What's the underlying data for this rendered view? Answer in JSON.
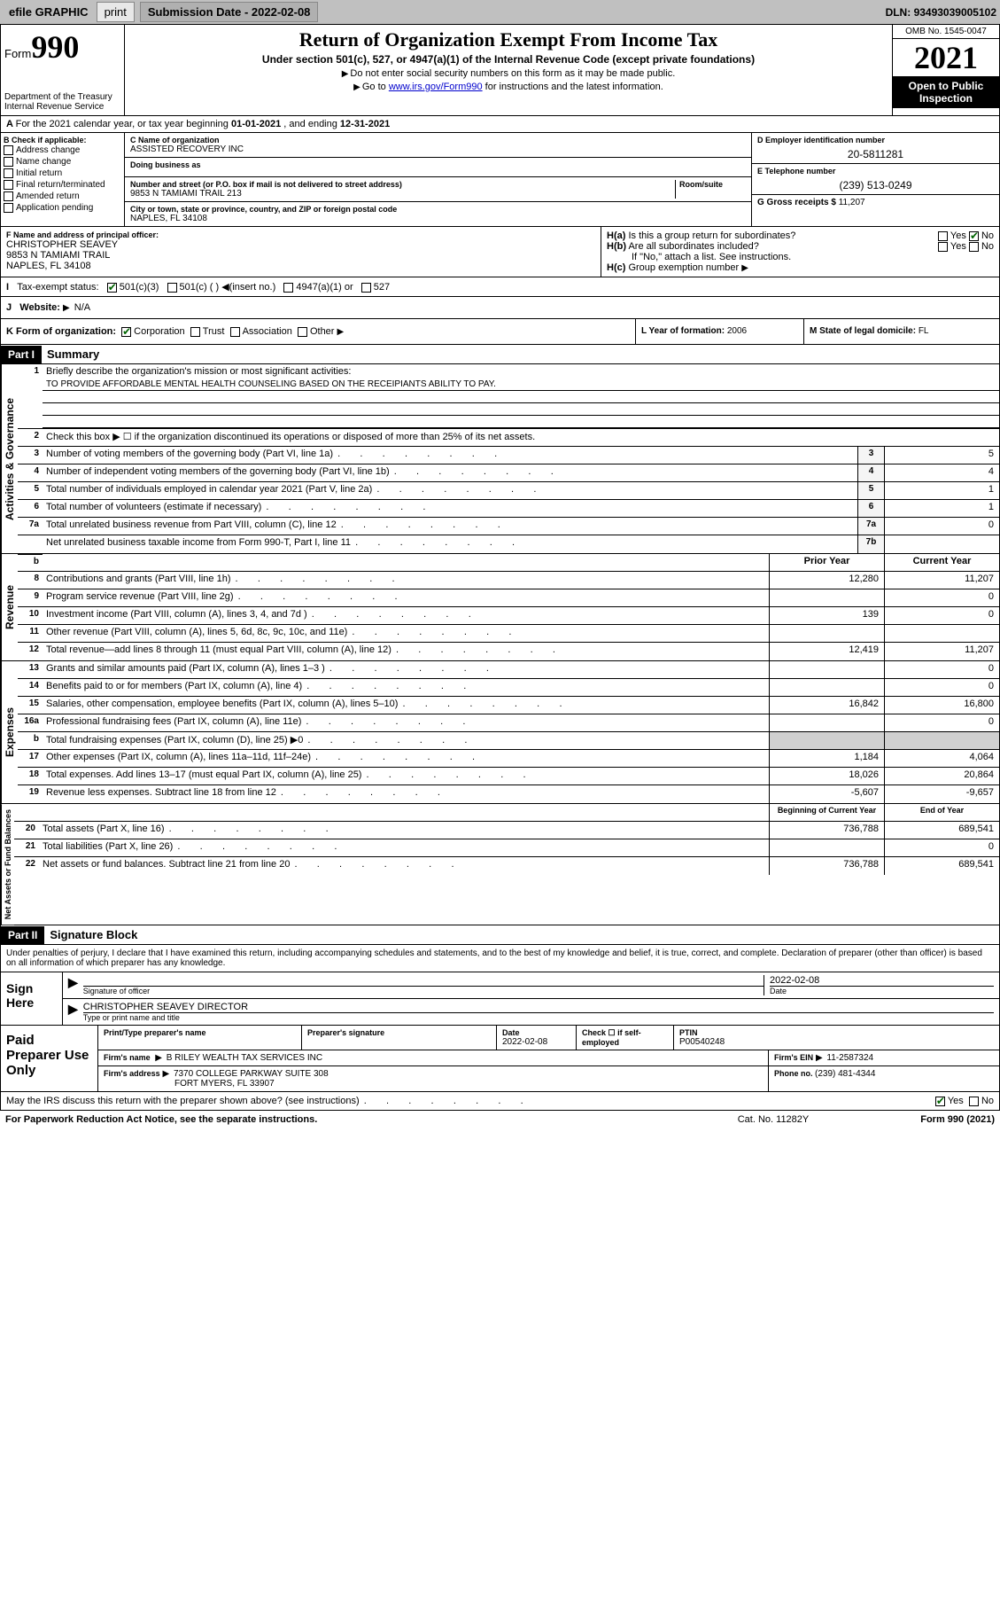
{
  "topbar": {
    "efile": "efile GRAPHIC",
    "print": "print",
    "sub_lbl": "Submission Date - ",
    "sub_date": "2022-02-08",
    "dln_lbl": "DLN: ",
    "dln": "93493039005102"
  },
  "hdr": {
    "form_pre": "Form",
    "form_no": "990",
    "dept": "Department of the Treasury",
    "irs": "Internal Revenue Service",
    "title": "Return of Organization Exempt From Income Tax",
    "sub": "Under section 501(c), 527, or 4947(a)(1) of the Internal Revenue Code (except private foundations)",
    "note1": "Do not enter social security numbers on this form as it may be made public.",
    "note2_pre": "Go to ",
    "note2_link": "www.irs.gov/Form990",
    "note2_post": " for instructions and the latest information.",
    "omb": "OMB No. 1545-0047",
    "year": "2021",
    "inspect": "Open to Public Inspection"
  },
  "a": {
    "text": "For the 2021 calendar year, or tax year beginning ",
    "begin": "01-01-2021",
    "mid": " , and ending ",
    "end": "12-31-2021"
  },
  "b": {
    "hdr": "B Check if applicable:",
    "opts": [
      "Address change",
      "Name change",
      "Initial return",
      "Final return/terminated",
      "Amended return",
      "Application pending"
    ]
  },
  "c": {
    "name_lbl": "C Name of organization",
    "name": "ASSISTED RECOVERY INC",
    "dba_lbl": "Doing business as",
    "dba": "",
    "street_lbl": "Number and street (or P.O. box if mail is not delivered to street address)",
    "room_lbl": "Room/suite",
    "street": "9853 N TAMIAMI TRAIL 213",
    "city_lbl": "City or town, state or province, country, and ZIP or foreign postal code",
    "city": "NAPLES, FL  34108"
  },
  "d": {
    "lbl": "D Employer identification number",
    "val": "20-5811281"
  },
  "e": {
    "lbl": "E Telephone number",
    "val": "(239) 513-0249"
  },
  "g": {
    "lbl": "G Gross receipts $ ",
    "val": "11,207"
  },
  "f": {
    "lbl": "F Name and address of principal officer:",
    "name": "CHRISTOPHER SEAVEY",
    "addr1": "9853 N TAMIAMI TRAIL",
    "addr2": "NAPLES, FL  34108"
  },
  "h": {
    "a_lbl": "Is this a group return for subordinates?",
    "a_yes": "Yes",
    "a_no": "No",
    "b_lbl": "Are all subordinates included?",
    "b_yes": "Yes",
    "b_no": "No",
    "b_note": "If \"No,\" attach a list. See instructions.",
    "c_lbl": "Group exemption number"
  },
  "i": {
    "lbl": "Tax-exempt status:",
    "o1": "501(c)(3)",
    "o2": "501(c) (  )",
    "o2b": "(insert no.)",
    "o3": "4947(a)(1) or",
    "o4": "527"
  },
  "j": {
    "lbl": "Website:",
    "val": "N/A"
  },
  "k": {
    "lbl": "K Form of organization:",
    "o1": "Corporation",
    "o2": "Trust",
    "o3": "Association",
    "o4": "Other"
  },
  "l": {
    "lbl": "L Year of formation: ",
    "val": "2006"
  },
  "m": {
    "lbl": "M State of legal domicile: ",
    "val": "FL"
  },
  "part1": {
    "hdr": "Part I",
    "title": "Summary"
  },
  "summary": {
    "l1_lbl": "Briefly describe the organization's mission or most significant activities:",
    "l1_val": "TO PROVIDE AFFORDABLE MENTAL HEALTH COUNSELING BASED ON THE RECEIPIANTS ABILITY TO PAY.",
    "l2": "Check this box ▶ ☐  if the organization discontinued its operations or disposed of more than 25% of its net assets.",
    "lines_gov": [
      {
        "n": "3",
        "t": "Number of voting members of the governing body (Part VI, line 1a)",
        "box": "3",
        "v": "5"
      },
      {
        "n": "4",
        "t": "Number of independent voting members of the governing body (Part VI, line 1b)",
        "box": "4",
        "v": "4"
      },
      {
        "n": "5",
        "t": "Total number of individuals employed in calendar year 2021 (Part V, line 2a)",
        "box": "5",
        "v": "1"
      },
      {
        "n": "6",
        "t": "Total number of volunteers (estimate if necessary)",
        "box": "6",
        "v": "1"
      },
      {
        "n": "7a",
        "t": "Total unrelated business revenue from Part VIII, column (C), line 12",
        "box": "7a",
        "v": "0"
      },
      {
        "n": "",
        "t": "Net unrelated business taxable income from Form 990-T, Part I, line 11",
        "box": "7b",
        "v": ""
      }
    ],
    "col_prior": "Prior Year",
    "col_curr": "Current Year",
    "rev": [
      {
        "n": "8",
        "t": "Contributions and grants (Part VIII, line 1h)",
        "p": "12,280",
        "c": "11,207"
      },
      {
        "n": "9",
        "t": "Program service revenue (Part VIII, line 2g)",
        "p": "",
        "c": "0"
      },
      {
        "n": "10",
        "t": "Investment income (Part VIII, column (A), lines 3, 4, and 7d )",
        "p": "139",
        "c": "0"
      },
      {
        "n": "11",
        "t": "Other revenue (Part VIII, column (A), lines 5, 6d, 8c, 9c, 10c, and 11e)",
        "p": "",
        "c": ""
      },
      {
        "n": "12",
        "t": "Total revenue—add lines 8 through 11 (must equal Part VIII, column (A), line 12)",
        "p": "12,419",
        "c": "11,207"
      }
    ],
    "exp": [
      {
        "n": "13",
        "t": "Grants and similar amounts paid (Part IX, column (A), lines 1–3 )",
        "p": "",
        "c": "0"
      },
      {
        "n": "14",
        "t": "Benefits paid to or for members (Part IX, column (A), line 4)",
        "p": "",
        "c": "0"
      },
      {
        "n": "15",
        "t": "Salaries, other compensation, employee benefits (Part IX, column (A), lines 5–10)",
        "p": "16,842",
        "c": "16,800"
      },
      {
        "n": "16a",
        "t": "Professional fundraising fees (Part IX, column (A), line 11e)",
        "p": "",
        "c": "0"
      },
      {
        "n": "b",
        "t": "Total fundraising expenses (Part IX, column (D), line 25) ▶0",
        "p": "shade",
        "c": "shade"
      },
      {
        "n": "17",
        "t": "Other expenses (Part IX, column (A), lines 11a–11d, 11f–24e)",
        "p": "1,184",
        "c": "4,064"
      },
      {
        "n": "18",
        "t": "Total expenses. Add lines 13–17 (must equal Part IX, column (A), line 25)",
        "p": "18,026",
        "c": "20,864"
      },
      {
        "n": "19",
        "t": "Revenue less expenses. Subtract line 18 from line 12",
        "p": "-5,607",
        "c": "-9,657"
      }
    ],
    "bal_h1": "Beginning of Current Year",
    "bal_h2": "End of Year",
    "bal": [
      {
        "n": "20",
        "t": "Total assets (Part X, line 16)",
        "p": "736,788",
        "c": "689,541"
      },
      {
        "n": "21",
        "t": "Total liabilities (Part X, line 26)",
        "p": "",
        "c": "0"
      },
      {
        "n": "22",
        "t": "Net assets or fund balances. Subtract line 21 from line 20",
        "p": "736,788",
        "c": "689,541"
      }
    ]
  },
  "vtabs": {
    "gov": "Activities & Governance",
    "rev": "Revenue",
    "exp": "Expenses",
    "bal": "Net Assets or Fund Balances"
  },
  "part2": {
    "hdr": "Part II",
    "title": "Signature Block"
  },
  "sig": {
    "decl": "Under penalties of perjury, I declare that I have examined this return, including accompanying schedules and statements, and to the best of my knowledge and belief, it is true, correct, and complete. Declaration of preparer (other than officer) is based on all information of which preparer has any knowledge.",
    "sign_here": "Sign Here",
    "sig_officer": "Signature of officer",
    "date_lbl": "Date",
    "date": "2022-02-08",
    "name": "CHRISTOPHER SEAVEY  DIRECTOR",
    "name_lbl": "Type or print name and title"
  },
  "prep": {
    "title": "Paid Preparer Use Only",
    "h_name": "Print/Type preparer's name",
    "h_sig": "Preparer's signature",
    "h_date": "Date",
    "date": "2022-02-08",
    "self_lbl": "Check ☐ if self-employed",
    "ptin_lbl": "PTIN",
    "ptin": "P00540248",
    "firm_name_lbl": "Firm's name",
    "firm_name": "B RILEY WEALTH TAX SERVICES INC",
    "firm_ein_lbl": "Firm's EIN",
    "firm_ein": "11-2587324",
    "firm_addr_lbl": "Firm's address",
    "firm_addr1": "7370 COLLEGE PARKWAY SUITE 308",
    "firm_addr2": "FORT MYERS, FL  33907",
    "phone_lbl": "Phone no. ",
    "phone": "(239) 481-4344"
  },
  "foot": {
    "discuss": "May the IRS discuss this return with the preparer shown above? (see instructions)",
    "yes": "Yes",
    "no": "No",
    "pwk": "For Paperwork Reduction Act Notice, see the separate instructions.",
    "cat": "Cat. No. 11282Y",
    "form": "Form 990 (2021)"
  }
}
